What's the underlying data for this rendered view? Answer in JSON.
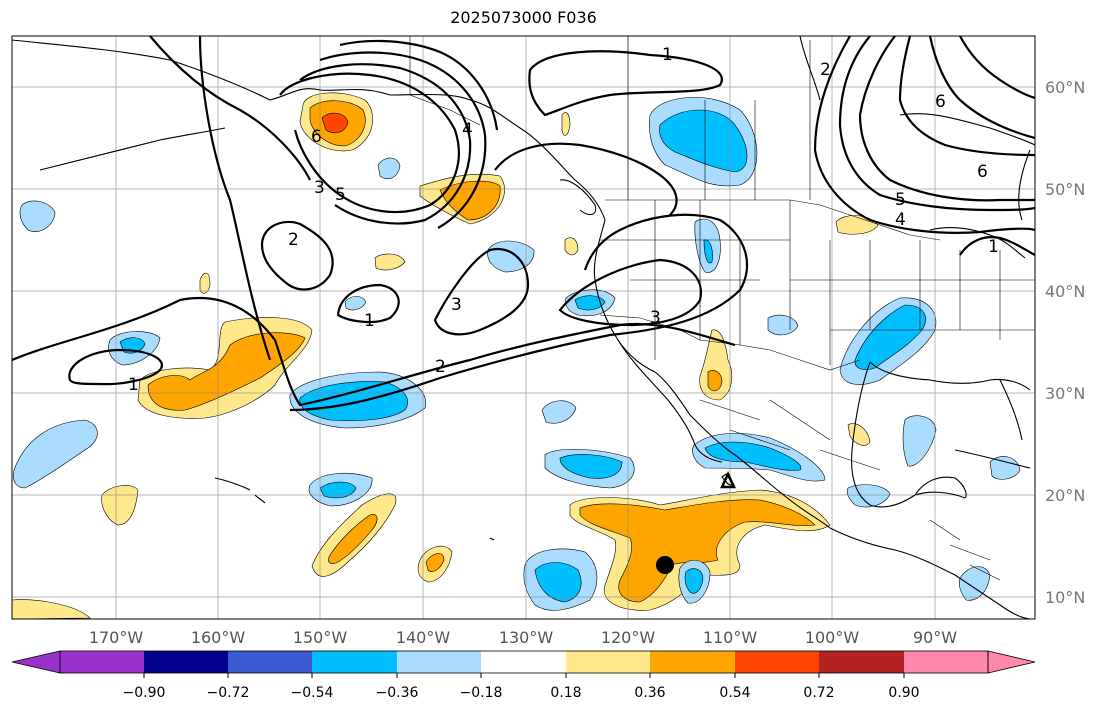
{
  "title": "2025073000 F036",
  "map": {
    "lon_ticks": [
      "170°W",
      "160°W",
      "150°W",
      "140°W",
      "130°W",
      "120°W",
      "110°W",
      "100°W",
      "90°W"
    ],
    "lat_ticks": [
      "60°N",
      "50°N",
      "40°N",
      "30°N",
      "20°N",
      "10°N"
    ],
    "extent": {
      "lon_min": -178,
      "lon_max": -78,
      "lat_min": 8,
      "lat_max": 66
    },
    "contour_labels": [
      "1",
      "2",
      "3",
      "4",
      "5",
      "6",
      "1",
      "2",
      "3",
      "1",
      "2",
      "3",
      "4",
      "5",
      "6",
      "6",
      "1"
    ],
    "colors": {
      "light_blue": "#aadcff",
      "blue": "#00bfff",
      "light_yellow": "#ffe88c",
      "orange": "#ffa500",
      "red_orange": "#ff4500"
    }
  },
  "colorbar": {
    "ticks": [
      "−0.90",
      "−0.72",
      "−0.54",
      "−0.36",
      "−0.18",
      "0.18",
      "0.36",
      "0.54",
      "0.72",
      "0.90"
    ],
    "colors": [
      "#9932cc",
      "#00008b",
      "#3a5bd0",
      "#00bfff",
      "#aadcff",
      "#ffffff",
      "#ffe88c",
      "#ffa500",
      "#ff4500",
      "#b22222",
      "#ff88aa"
    ]
  }
}
